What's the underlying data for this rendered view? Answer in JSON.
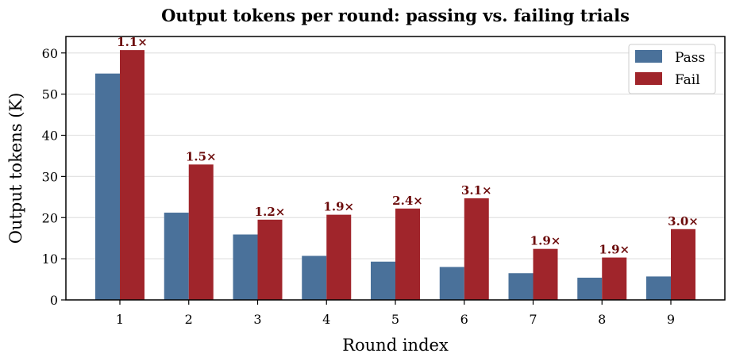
{
  "chart_data": {
    "type": "bar",
    "title": "Output tokens per round: passing vs. failing trials",
    "xlabel": "Round index",
    "ylabel": "Output tokens (K)",
    "categories": [
      "1",
      "2",
      "3",
      "4",
      "5",
      "6",
      "7",
      "8",
      "9"
    ],
    "ylim": [
      0,
      64
    ],
    "yticks": [
      "0",
      "10",
      "20",
      "30",
      "40",
      "50",
      "60"
    ],
    "grid": "horizontal",
    "legend_position": "top-right",
    "series": [
      {
        "name": "Pass",
        "color": "#4a719a",
        "values": [
          55.0,
          21.2,
          15.9,
          10.7,
          9.3,
          8.0,
          6.5,
          5.4,
          5.7
        ]
      },
      {
        "name": "Fail",
        "color": "#a0252b",
        "values": [
          60.7,
          32.9,
          19.5,
          20.7,
          22.2,
          24.7,
          12.4,
          10.3,
          17.2
        ]
      }
    ],
    "annotations": [
      "1.1×",
      "1.5×",
      "1.2×",
      "1.9×",
      "2.4×",
      "3.1×",
      "1.9×",
      "1.9×",
      "3.0×"
    ]
  }
}
